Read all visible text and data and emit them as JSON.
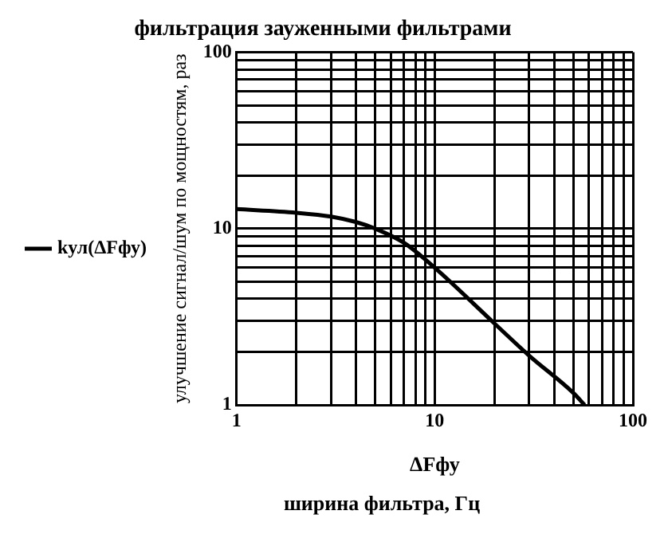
{
  "chart_data": {
    "type": "line",
    "title": "фильтрация зауженными фильтрами",
    "xlabel": "ΔFфу",
    "ylabel": "улучшение сигнал/шум по мощностям, раз",
    "annotations": [
      "ширина фильтра, Гц"
    ],
    "x": [
      1,
      2,
      3,
      4,
      5,
      7,
      10,
      20,
      30,
      50,
      57
    ],
    "series": [
      {
        "name": "kул(ΔFфу)",
        "color": "#000000",
        "values": [
          12.9,
          12.3,
          11.7,
          10.9,
          10,
          8.3,
          6,
          2.9,
          1.9,
          1.17,
          1
        ]
      }
    ],
    "log": "xy",
    "xlim": [
      1,
      100
    ],
    "ylim": [
      1,
      100
    ],
    "xticks": [
      1,
      {
        "value": 2,
        "label": null
      },
      {
        "value": 3,
        "label": null
      },
      {
        "value": 4,
        "label": null
      },
      {
        "value": 5,
        "label": null
      },
      {
        "value": 6,
        "label": null
      },
      {
        "value": 7,
        "label": null
      },
      {
        "value": 8,
        "label": null
      },
      {
        "value": 9,
        "label": null
      },
      10,
      {
        "value": 20,
        "label": null
      },
      {
        "value": 30,
        "label": null
      },
      {
        "value": 40,
        "label": null
      },
      {
        "value": 50,
        "label": null
      },
      {
        "value": 60,
        "label": null
      },
      {
        "value": 70,
        "label": null
      },
      {
        "value": 80,
        "label": null
      },
      {
        "value": 90,
        "label": null
      },
      100
    ],
    "yticks": [
      1,
      {
        "value": 2,
        "label": null
      },
      {
        "value": 3,
        "label": null
      },
      {
        "value": 4,
        "label": null
      },
      {
        "value": 5,
        "label": null
      },
      {
        "value": 6,
        "label": null
      },
      {
        "value": 7,
        "label": null
      },
      {
        "value": 8,
        "label": null
      },
      {
        "value": 9,
        "label": null
      },
      10,
      {
        "value": 20,
        "label": null
      },
      {
        "value": 30,
        "label": null
      },
      {
        "value": 40,
        "label": null
      },
      {
        "value": 50,
        "label": null
      },
      {
        "value": 60,
        "label": null
      },
      {
        "value": 70,
        "label": null
      },
      {
        "value": 80,
        "label": null
      },
      {
        "value": 90,
        "label": null
      },
      100
    ],
    "grid": true,
    "legend": "left",
    "marker": "none",
    "line_style": "solid"
  }
}
